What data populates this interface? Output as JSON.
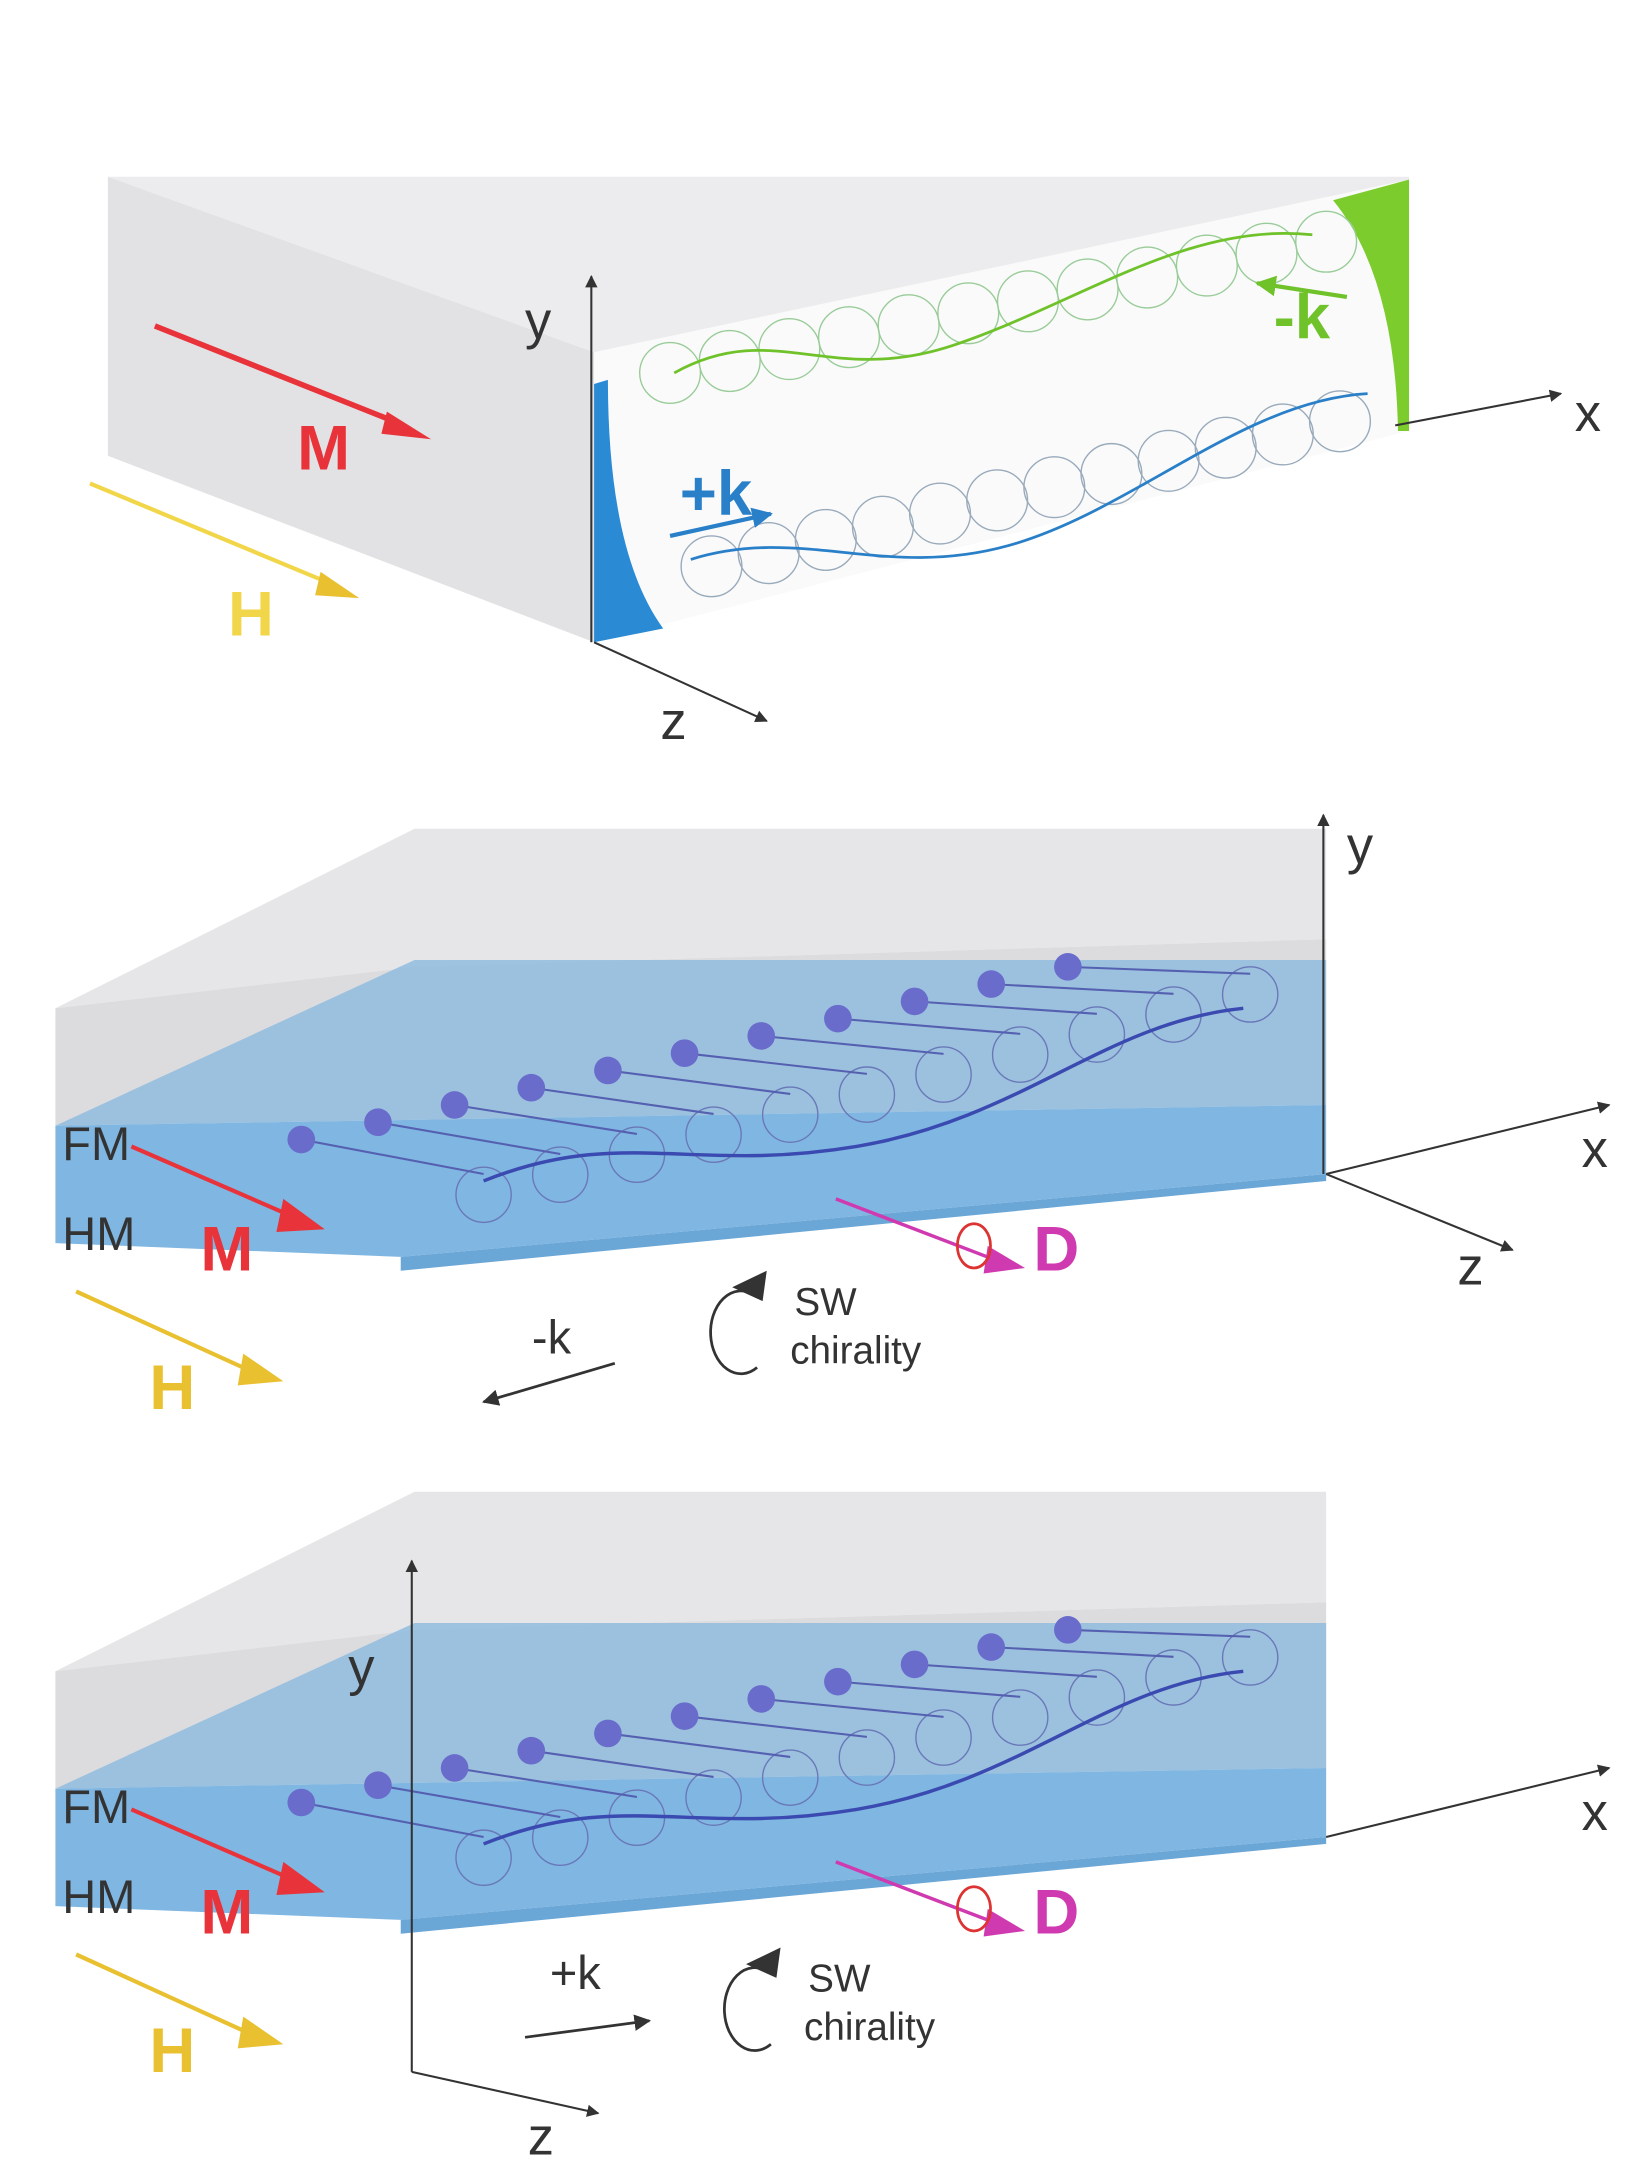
{
  "panels": [
    {
      "axes": {
        "y": "y",
        "x": "x",
        "z": "z"
      },
      "labels": {
        "M": "M",
        "H": "H",
        "plus_k": "+k",
        "minus_k": "-k"
      }
    },
    {
      "axes": {
        "y": "y",
        "x": "x",
        "z": "z"
      },
      "labels": {
        "FM": "FM",
        "HM": "HM",
        "M": "M",
        "H": "H",
        "D": "D",
        "k": "-k",
        "sw": "SW",
        "chirality": "chirality"
      }
    },
    {
      "axes": {
        "y": "y",
        "x": "x",
        "z": "z"
      },
      "labels": {
        "FM": "FM",
        "HM": "HM",
        "M": "M",
        "H": "H",
        "D": "D",
        "k": "+k",
        "sw": "SW",
        "chirality": "chirality"
      }
    }
  ]
}
